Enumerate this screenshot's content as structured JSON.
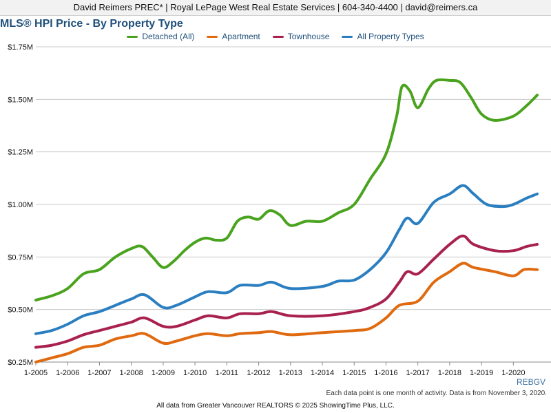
{
  "header": {
    "contact": "David Reimers PREC* | Royal LePage West Real Estate Services | 604-340-4400 | david@reimers.ca"
  },
  "footer": {
    "source_tag": "REBGV",
    "note": "Each data point is one month of activity. Data is from November 3, 2020.",
    "copyright": "All data from Greater Vancouver REALTORS © 2025 ShowingTime Plus, LLC."
  },
  "chart_data": {
    "type": "line",
    "title": "MLS® HPI Price - By Property Type",
    "xlabel": "",
    "ylabel": "",
    "y_tick_labels": [
      "$0.25M",
      "$0.50M",
      "$0.75M",
      "$1.00M",
      "$1.25M",
      "$1.50M",
      "$1.75M"
    ],
    "y_ticks": [
      0.25,
      0.5,
      0.75,
      1.0,
      1.25,
      1.5,
      1.75
    ],
    "ylim": [
      0.25,
      1.75
    ],
    "x_tick_labels": [
      "1-2005",
      "1-2006",
      "1-2007",
      "1-2008",
      "1-2009",
      "1-2010",
      "1-2011",
      "1-2012",
      "1-2013",
      "1-2014",
      "1-2015",
      "1-2016",
      "1-2017",
      "1-2018",
      "1-2019",
      "1-2020"
    ],
    "xlim": [
      "2005-01",
      "2020-10"
    ],
    "legend_position": "top-center",
    "grid": "horizontal",
    "series": [
      {
        "name": "Detached (All)",
        "color": "#4aa31e",
        "points": [
          [
            "2005-01",
            0.545
          ],
          [
            "2005-07",
            0.565
          ],
          [
            "2006-01",
            0.6
          ],
          [
            "2006-07",
            0.67
          ],
          [
            "2007-01",
            0.69
          ],
          [
            "2007-07",
            0.75
          ],
          [
            "2008-01",
            0.79
          ],
          [
            "2008-05",
            0.8
          ],
          [
            "2008-09",
            0.75
          ],
          [
            "2009-01",
            0.7
          ],
          [
            "2009-05",
            0.73
          ],
          [
            "2009-09",
            0.78
          ],
          [
            "2010-01",
            0.82
          ],
          [
            "2010-05",
            0.84
          ],
          [
            "2010-09",
            0.83
          ],
          [
            "2011-01",
            0.84
          ],
          [
            "2011-05",
            0.92
          ],
          [
            "2011-09",
            0.94
          ],
          [
            "2012-01",
            0.93
          ],
          [
            "2012-05",
            0.97
          ],
          [
            "2012-09",
            0.95
          ],
          [
            "2013-01",
            0.9
          ],
          [
            "2013-07",
            0.92
          ],
          [
            "2014-01",
            0.92
          ],
          [
            "2014-07",
            0.96
          ],
          [
            "2015-01",
            1.0
          ],
          [
            "2015-07",
            1.12
          ],
          [
            "2016-01",
            1.24
          ],
          [
            "2016-05",
            1.42
          ],
          [
            "2016-07",
            1.56
          ],
          [
            "2016-10",
            1.54
          ],
          [
            "2017-01",
            1.46
          ],
          [
            "2017-05",
            1.55
          ],
          [
            "2017-08",
            1.59
          ],
          [
            "2018-01",
            1.59
          ],
          [
            "2018-05",
            1.58
          ],
          [
            "2018-09",
            1.51
          ],
          [
            "2019-01",
            1.43
          ],
          [
            "2019-06",
            1.4
          ],
          [
            "2020-01",
            1.42
          ],
          [
            "2020-06",
            1.47
          ],
          [
            "2020-10",
            1.52
          ]
        ]
      },
      {
        "name": "Apartment",
        "color": "#e06a10",
        "points": [
          [
            "2005-01",
            0.25
          ],
          [
            "2005-07",
            0.27
          ],
          [
            "2006-01",
            0.29
          ],
          [
            "2006-07",
            0.32
          ],
          [
            "2007-01",
            0.33
          ],
          [
            "2007-07",
            0.36
          ],
          [
            "2008-01",
            0.375
          ],
          [
            "2008-06",
            0.385
          ],
          [
            "2009-01",
            0.34
          ],
          [
            "2009-06",
            0.35
          ],
          [
            "2010-01",
            0.375
          ],
          [
            "2010-06",
            0.385
          ],
          [
            "2011-01",
            0.375
          ],
          [
            "2011-06",
            0.385
          ],
          [
            "2012-01",
            0.39
          ],
          [
            "2012-06",
            0.395
          ],
          [
            "2013-01",
            0.38
          ],
          [
            "2014-01",
            0.39
          ],
          [
            "2015-01",
            0.4
          ],
          [
            "2015-07",
            0.41
          ],
          [
            "2016-01",
            0.46
          ],
          [
            "2016-06",
            0.52
          ],
          [
            "2017-01",
            0.54
          ],
          [
            "2017-07",
            0.63
          ],
          [
            "2018-01",
            0.68
          ],
          [
            "2018-06",
            0.72
          ],
          [
            "2018-10",
            0.7
          ],
          [
            "2019-06",
            0.68
          ],
          [
            "2020-01",
            0.66
          ],
          [
            "2020-05",
            0.69
          ],
          [
            "2020-10",
            0.69
          ]
        ]
      },
      {
        "name": "Townhouse",
        "color": "#a8214f",
        "points": [
          [
            "2005-01",
            0.32
          ],
          [
            "2005-07",
            0.33
          ],
          [
            "2006-01",
            0.35
          ],
          [
            "2006-07",
            0.38
          ],
          [
            "2007-01",
            0.4
          ],
          [
            "2007-07",
            0.42
          ],
          [
            "2008-01",
            0.44
          ],
          [
            "2008-06",
            0.46
          ],
          [
            "2009-01",
            0.42
          ],
          [
            "2009-06",
            0.42
          ],
          [
            "2010-01",
            0.45
          ],
          [
            "2010-06",
            0.47
          ],
          [
            "2011-01",
            0.46
          ],
          [
            "2011-06",
            0.48
          ],
          [
            "2012-01",
            0.48
          ],
          [
            "2012-06",
            0.49
          ],
          [
            "2013-01",
            0.47
          ],
          [
            "2014-01",
            0.47
          ],
          [
            "2015-01",
            0.49
          ],
          [
            "2015-07",
            0.51
          ],
          [
            "2016-01",
            0.55
          ],
          [
            "2016-06",
            0.63
          ],
          [
            "2016-09",
            0.68
          ],
          [
            "2017-01",
            0.67
          ],
          [
            "2017-07",
            0.74
          ],
          [
            "2018-01",
            0.81
          ],
          [
            "2018-06",
            0.85
          ],
          [
            "2018-10",
            0.81
          ],
          [
            "2019-06",
            0.78
          ],
          [
            "2020-01",
            0.78
          ],
          [
            "2020-06",
            0.8
          ],
          [
            "2020-10",
            0.81
          ]
        ]
      },
      {
        "name": "All Property Types",
        "color": "#2b7fc0",
        "points": [
          [
            "2005-01",
            0.385
          ],
          [
            "2005-07",
            0.4
          ],
          [
            "2006-01",
            0.43
          ],
          [
            "2006-07",
            0.47
          ],
          [
            "2007-01",
            0.49
          ],
          [
            "2007-07",
            0.52
          ],
          [
            "2008-01",
            0.55
          ],
          [
            "2008-06",
            0.57
          ],
          [
            "2009-01",
            0.51
          ],
          [
            "2009-06",
            0.52
          ],
          [
            "2010-01",
            0.56
          ],
          [
            "2010-06",
            0.585
          ],
          [
            "2011-01",
            0.58
          ],
          [
            "2011-06",
            0.615
          ],
          [
            "2012-01",
            0.615
          ],
          [
            "2012-06",
            0.63
          ],
          [
            "2013-01",
            0.6
          ],
          [
            "2014-01",
            0.61
          ],
          [
            "2014-07",
            0.635
          ],
          [
            "2015-01",
            0.64
          ],
          [
            "2015-07",
            0.69
          ],
          [
            "2016-01",
            0.77
          ],
          [
            "2016-06",
            0.88
          ],
          [
            "2016-09",
            0.935
          ],
          [
            "2017-01",
            0.91
          ],
          [
            "2017-07",
            1.01
          ],
          [
            "2018-01",
            1.05
          ],
          [
            "2018-06",
            1.09
          ],
          [
            "2018-10",
            1.05
          ],
          [
            "2019-03",
            1.0
          ],
          [
            "2019-09",
            0.99
          ],
          [
            "2020-01",
            1.0
          ],
          [
            "2020-06",
            1.03
          ],
          [
            "2020-10",
            1.05
          ]
        ]
      }
    ]
  }
}
